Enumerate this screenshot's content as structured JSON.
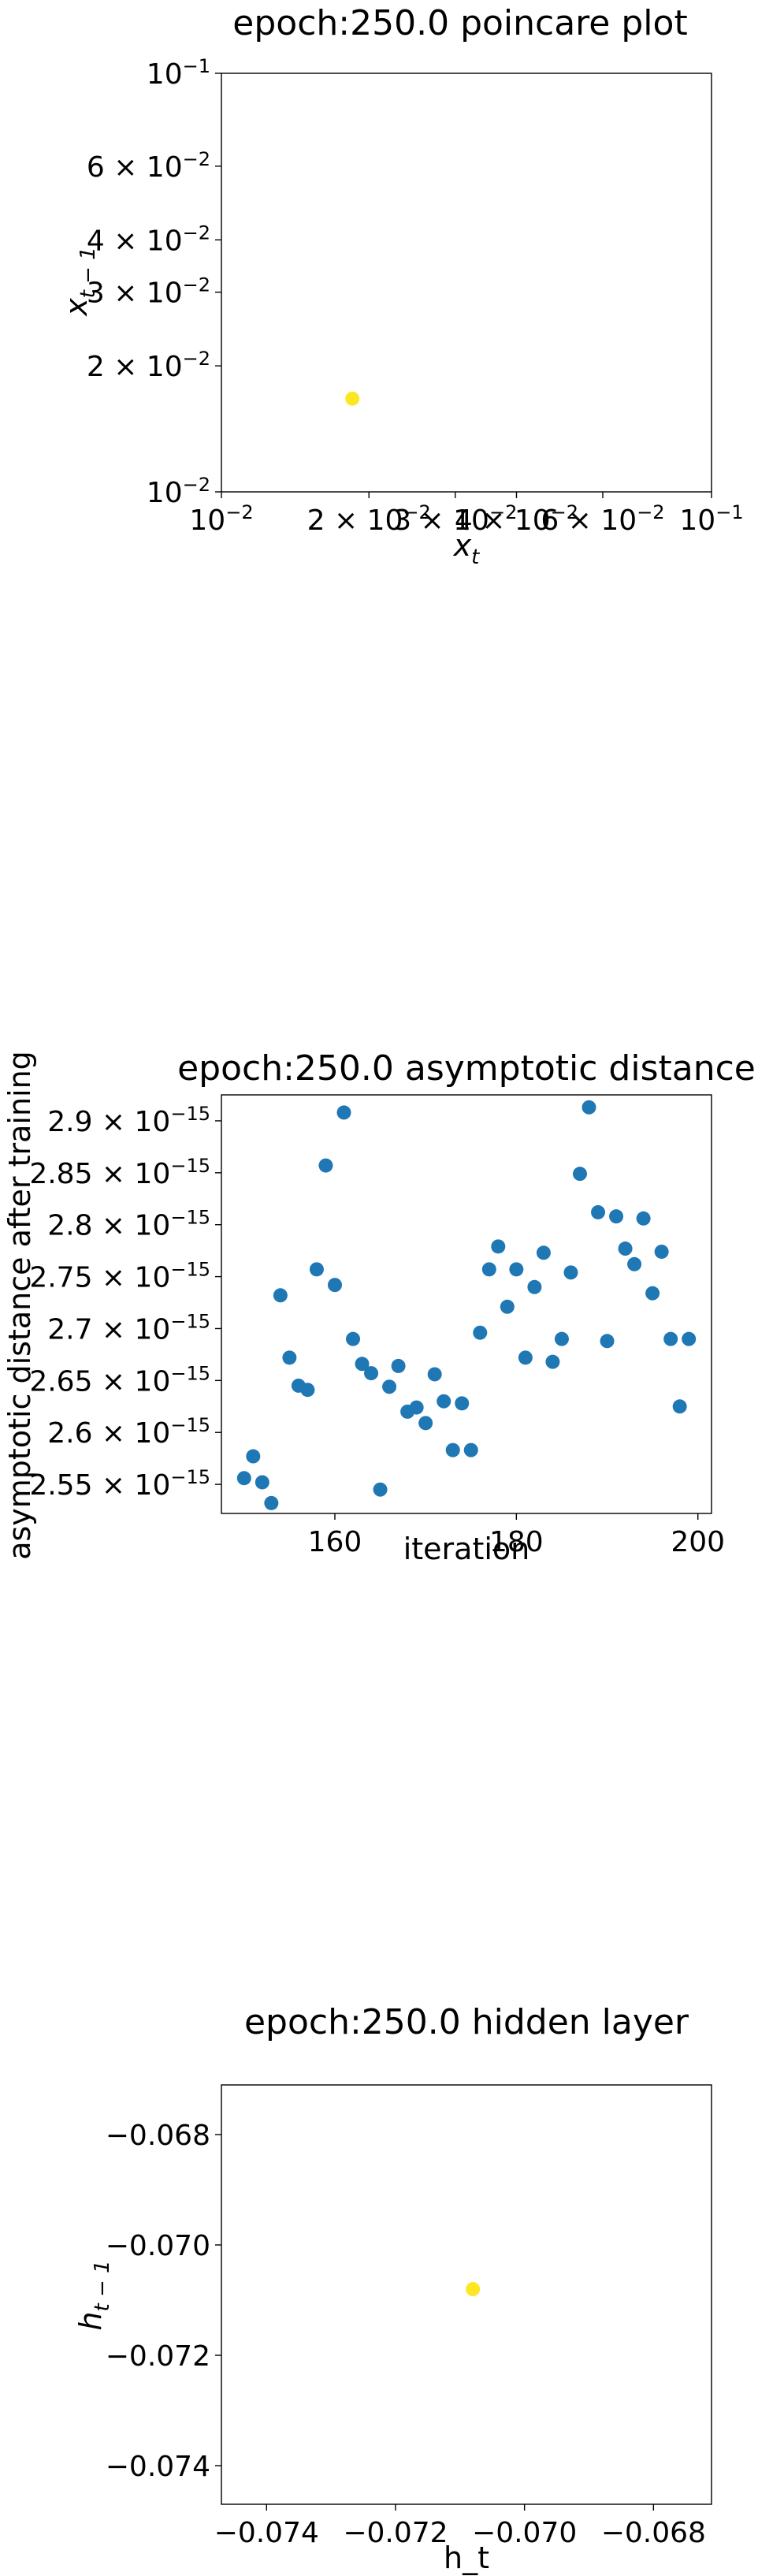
{
  "chart_data": [
    {
      "type": "scatter",
      "title": "epoch:250.0 poincare plot",
      "xlabel": "x_t",
      "ylabel": "x_{t-1}",
      "xscale": "log",
      "yscale": "log",
      "xlim": [
        0.01,
        0.1
      ],
      "ylim": [
        0.01,
        0.1
      ],
      "x_ticks": [
        {
          "value": 0.01,
          "mant": "10",
          "exp": "−2"
        },
        {
          "value": 0.02,
          "mant": "2 × 10",
          "exp": "−2"
        },
        {
          "value": 0.03,
          "mant": "3 × 10",
          "exp": "−2"
        },
        {
          "value": 0.04,
          "mant": "4 × 10",
          "exp": "−2"
        },
        {
          "value": 0.06,
          "mant": "6 × 10",
          "exp": "−2"
        },
        {
          "value": 0.1,
          "mant": "10",
          "exp": "−1"
        }
      ],
      "y_ticks": [
        {
          "value": 0.01,
          "mant": "10",
          "exp": "−2"
        },
        {
          "value": 0.02,
          "mant": "2 × 10",
          "exp": "−2"
        },
        {
          "value": 0.03,
          "mant": "3 × 10",
          "exp": "−2"
        },
        {
          "value": 0.04,
          "mant": "4 × 10",
          "exp": "−2"
        },
        {
          "value": 0.06,
          "mant": "6 × 10",
          "exp": "−2"
        },
        {
          "value": 0.1,
          "mant": "10",
          "exp": "−1"
        }
      ],
      "color": "#fde725",
      "points": [
        {
          "x": 0.0185,
          "y": 0.0167
        }
      ]
    },
    {
      "type": "scatter",
      "title": "epoch:250.0 asymptotic distance",
      "xlabel": "iteration",
      "ylabel": "asymptotic distance after training",
      "xlim": [
        147.5,
        201.5
      ],
      "ylim": [
        2.522e-15,
        2.925e-15
      ],
      "x_ticks": [
        {
          "value": 160,
          "label": "160"
        },
        {
          "value": 180,
          "label": "180"
        },
        {
          "value": 200,
          "label": "200"
        }
      ],
      "y_ticks": [
        {
          "value": 2.55e-15,
          "mant": "2.55 × 10",
          "exp": "−15"
        },
        {
          "value": 2.6e-15,
          "mant": "2.6 × 10",
          "exp": "−15"
        },
        {
          "value": 2.65e-15,
          "mant": "2.65 × 10",
          "exp": "−15"
        },
        {
          "value": 2.7e-15,
          "mant": "2.7 × 10",
          "exp": "−15"
        },
        {
          "value": 2.75e-15,
          "mant": "2.75 × 10",
          "exp": "−15"
        },
        {
          "value": 2.8e-15,
          "mant": "2.8 × 10",
          "exp": "−15"
        },
        {
          "value": 2.85e-15,
          "mant": "2.85 × 10",
          "exp": "−15"
        },
        {
          "value": 2.9e-15,
          "mant": "2.9 × 10",
          "exp": "−15"
        }
      ],
      "color": "#1f77b4",
      "points": [
        {
          "x": 150,
          "y": 2.556e-15
        },
        {
          "x": 151,
          "y": 2.577e-15
        },
        {
          "x": 152,
          "y": 2.552e-15
        },
        {
          "x": 153,
          "y": 2.532e-15
        },
        {
          "x": 154,
          "y": 2.732e-15
        },
        {
          "x": 155,
          "y": 2.672e-15
        },
        {
          "x": 156,
          "y": 2.645e-15
        },
        {
          "x": 157,
          "y": 2.641e-15
        },
        {
          "x": 158,
          "y": 2.757e-15
        },
        {
          "x": 159,
          "y": 2.857e-15
        },
        {
          "x": 160,
          "y": 2.742e-15
        },
        {
          "x": 161,
          "y": 2.908e-15
        },
        {
          "x": 162,
          "y": 2.69e-15
        },
        {
          "x": 163,
          "y": 2.666e-15
        },
        {
          "x": 164,
          "y": 2.657e-15
        },
        {
          "x": 165,
          "y": 2.545e-15
        },
        {
          "x": 166,
          "y": 2.644e-15
        },
        {
          "x": 167,
          "y": 2.664e-15
        },
        {
          "x": 168,
          "y": 2.62e-15
        },
        {
          "x": 169,
          "y": 2.624e-15
        },
        {
          "x": 170,
          "y": 2.609e-15
        },
        {
          "x": 171,
          "y": 2.656e-15
        },
        {
          "x": 172,
          "y": 2.63e-15
        },
        {
          "x": 173,
          "y": 2.583e-15
        },
        {
          "x": 174,
          "y": 2.628e-15
        },
        {
          "x": 175,
          "y": 2.583e-15
        },
        {
          "x": 176,
          "y": 2.696e-15
        },
        {
          "x": 177,
          "y": 2.757e-15
        },
        {
          "x": 178,
          "y": 2.779e-15
        },
        {
          "x": 179,
          "y": 2.721e-15
        },
        {
          "x": 180,
          "y": 2.757e-15
        },
        {
          "x": 181,
          "y": 2.672e-15
        },
        {
          "x": 182,
          "y": 2.74e-15
        },
        {
          "x": 183,
          "y": 2.773e-15
        },
        {
          "x": 184,
          "y": 2.668e-15
        },
        {
          "x": 185,
          "y": 2.69e-15
        },
        {
          "x": 186,
          "y": 2.754e-15
        },
        {
          "x": 187,
          "y": 2.849e-15
        },
        {
          "x": 188,
          "y": 2.913e-15
        },
        {
          "x": 189,
          "y": 2.812e-15
        },
        {
          "x": 190,
          "y": 2.688e-15
        },
        {
          "x": 191,
          "y": 2.808e-15
        },
        {
          "x": 192,
          "y": 2.777e-15
        },
        {
          "x": 193,
          "y": 2.762e-15
        },
        {
          "x": 194,
          "y": 2.806e-15
        },
        {
          "x": 195,
          "y": 2.734e-15
        },
        {
          "x": 196,
          "y": 2.774e-15
        },
        {
          "x": 197,
          "y": 2.69e-15
        },
        {
          "x": 198,
          "y": 2.625e-15
        },
        {
          "x": 199,
          "y": 2.69e-15
        }
      ]
    },
    {
      "type": "scatter",
      "title": "epoch:250.0 hidden layer",
      "xlabel": "h_t",
      "ylabel": "h_{t-1}",
      "xlim": [
        -0.0747,
        -0.0671
      ],
      "ylim": [
        -0.0747,
        -0.0671
      ],
      "x_ticks": [
        {
          "value": -0.074,
          "label": "−0.074"
        },
        {
          "value": -0.072,
          "label": "−0.072"
        },
        {
          "value": -0.07,
          "label": "−0.070"
        },
        {
          "value": -0.068,
          "label": "−0.068"
        }
      ],
      "y_ticks": [
        {
          "value": -0.074,
          "label": "−0.074"
        },
        {
          "value": -0.072,
          "label": "−0.072"
        },
        {
          "value": -0.07,
          "label": "−0.070"
        },
        {
          "value": -0.068,
          "label": "−0.068"
        }
      ],
      "color": "#fde725",
      "points": [
        {
          "x": -0.0708,
          "y": -0.0708
        }
      ]
    }
  ]
}
